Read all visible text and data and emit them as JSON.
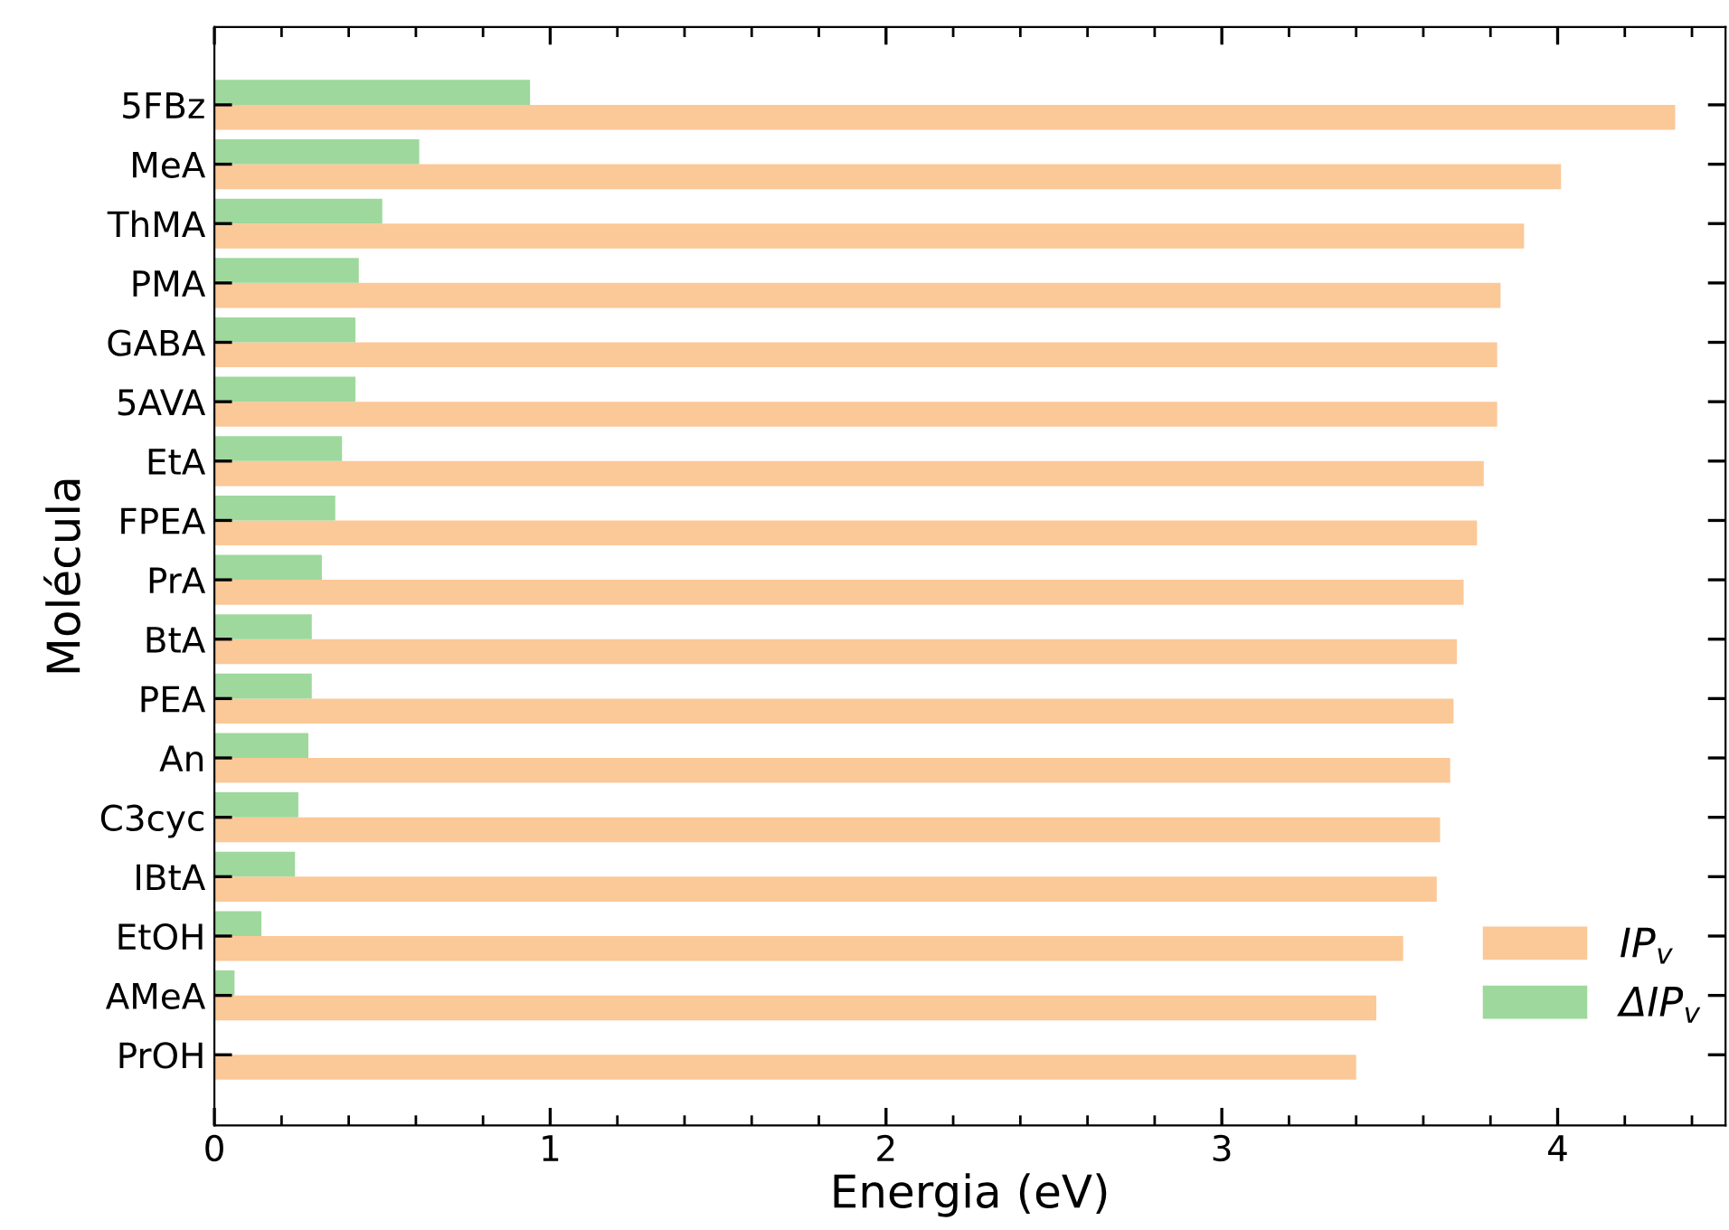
{
  "chart_data": {
    "type": "bar",
    "orientation": "horizontal",
    "xlabel": "Energia (eV)",
    "ylabel": "Molécula",
    "categories": [
      "5FBz",
      "MeA",
      "ThMA",
      "PMA",
      "GABA",
      "5AVA",
      "EtA",
      "FPEA",
      "PrA",
      "BtA",
      "PEA",
      "An",
      "C3cyc",
      "IBtA",
      "EtOH",
      "AMeA",
      "PrOH"
    ],
    "series": [
      {
        "name": "IP$_{v}$",
        "color": "#fbc898",
        "values": [
          4.35,
          4.01,
          3.9,
          3.83,
          3.82,
          3.82,
          3.78,
          3.76,
          3.72,
          3.7,
          3.69,
          3.68,
          3.65,
          3.64,
          3.54,
          3.46,
          3.4
        ]
      },
      {
        "name": "ΔIP$_{v}$",
        "color": "#9ed89c",
        "values": [
          0.94,
          0.61,
          0.5,
          0.43,
          0.42,
          0.42,
          0.38,
          0.36,
          0.32,
          0.29,
          0.29,
          0.28,
          0.25,
          0.24,
          0.14,
          0.06,
          0
        ]
      }
    ],
    "xlim": [
      0,
      4.5
    ],
    "xticks": [
      0,
      {
        "value": 0.2,
        "label": null
      },
      {
        "value": 0.4,
        "label": null
      },
      {
        "value": 0.6,
        "label": null
      },
      {
        "value": 0.8,
        "label": null
      },
      1,
      {
        "value": 1.2,
        "label": null
      },
      {
        "value": 1.4,
        "label": null
      },
      {
        "value": 1.6,
        "label": null
      },
      {
        "value": 1.8,
        "label": null
      },
      2,
      {
        "value": 2.2,
        "label": null
      },
      {
        "value": 2.4,
        "label": null
      },
      {
        "value": 2.6,
        "label": null
      },
      {
        "value": 2.8,
        "label": null
      },
      3,
      {
        "value": 3.2,
        "label": null
      },
      {
        "value": 3.4,
        "label": null
      },
      {
        "value": 3.6,
        "label": null
      },
      {
        "value": 3.8,
        "label": null
      },
      4,
      {
        "value": 4.2,
        "label": null
      },
      {
        "value": 4.4,
        "label": null
      }
    ],
    "grid": false,
    "legend": "bottom right"
  }
}
